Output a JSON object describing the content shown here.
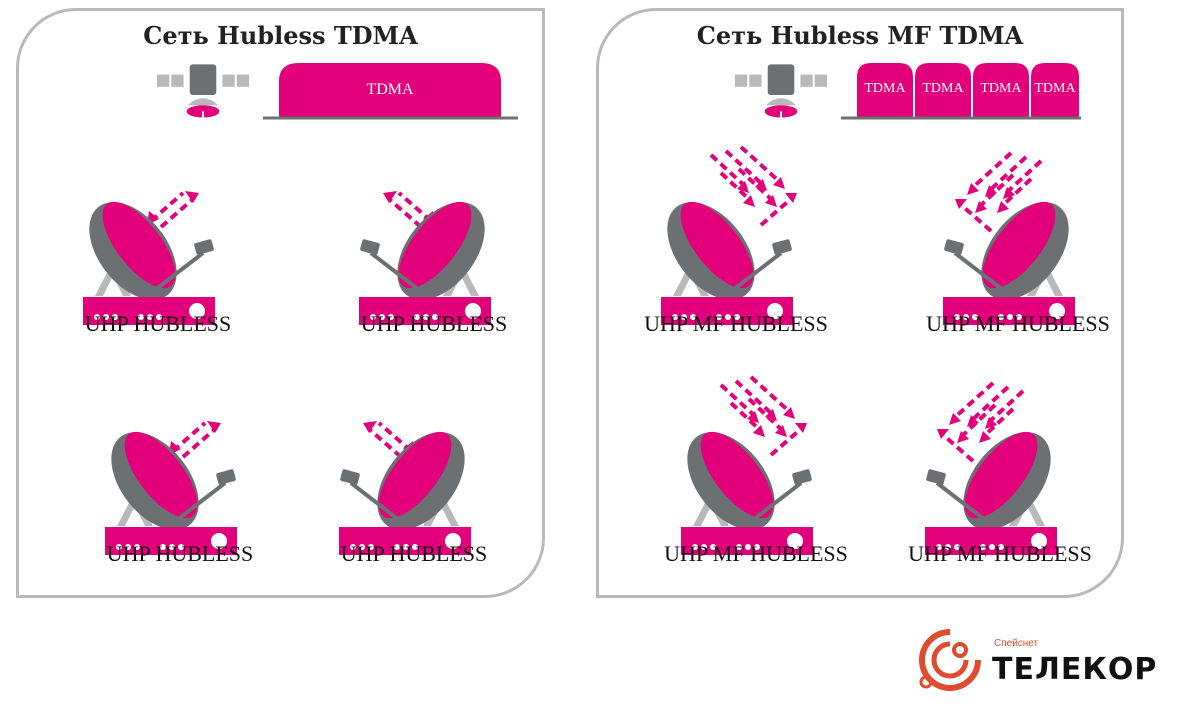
{
  "left_panel": {
    "title": "Сеть Hubless TDMA",
    "carrier_label": "TDMA",
    "stations": [
      "UHP HUBLESS",
      "UHP HUBLESS",
      "UHP HUBLESS",
      "UHP HUBLESS"
    ]
  },
  "right_panel": {
    "title": "Сеть Hubless MF TDMA",
    "carrier_labels": [
      "TDMA",
      "TDMA",
      "TDMA",
      "TDMA"
    ],
    "stations": [
      "UHP MF HUBLESS",
      "UHP MF HUBLESS",
      "UHP MF HUBLESS",
      "UHP MF HUBLESS"
    ]
  },
  "logo": {
    "small_text": "Спейснет",
    "big_text": "ТЕЛЕКОР"
  },
  "colors": {
    "accent": "#e3007b",
    "gray": "#6d7072",
    "light_gray": "#b7b9bb",
    "logo_red": "#e04a2e"
  }
}
